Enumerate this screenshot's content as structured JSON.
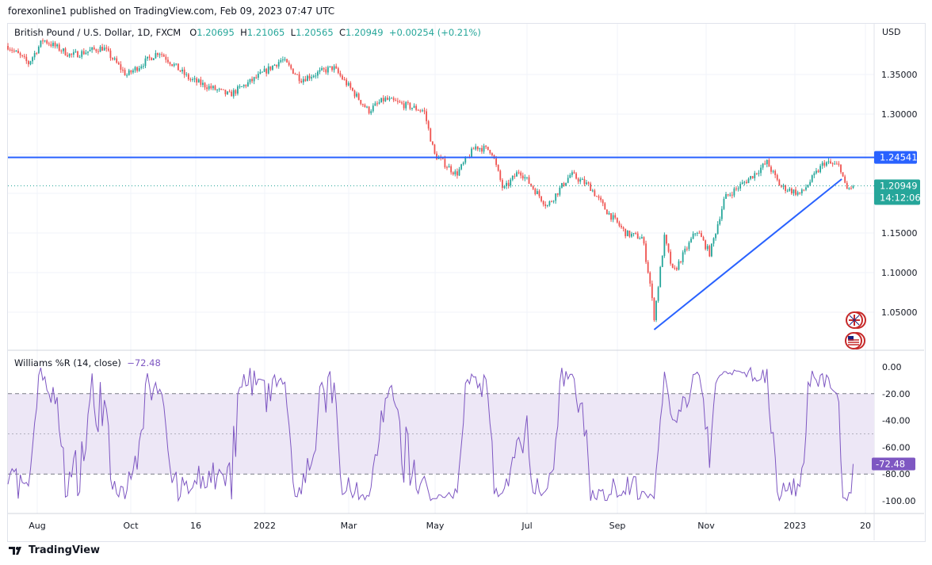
{
  "published": "forexonline1 published on TradingView.com, Feb 09, 2023 07:47 UTC",
  "legend": {
    "symbol": "British Pound / U.S. Dollar, 1D, FXCM",
    "o_label": "O",
    "open": "1.20695",
    "h_label": "H",
    "high": "1.21065",
    "l_label": "L",
    "low": "1.20565",
    "c_label": "C",
    "close": "1.20949",
    "change": "+0.00254 (+0.21%)"
  },
  "currency": "USD",
  "price_labels": {
    "horizontal_line": "1.24541",
    "last_price": "1.20949",
    "countdown": "14:12:06"
  },
  "indicator": {
    "name": "Williams %R (14, close)",
    "value": "−72.48",
    "axis_label": "-72.48"
  },
  "footer": {
    "brand": "TradingView"
  },
  "colors": {
    "up": "#26a69a",
    "down": "#ef5350",
    "line": "#2962ff",
    "williams": "#7e57c2",
    "band": "#ede7f6"
  },
  "icons": [
    "tradingview-logo-icon",
    "gb-flag-icon",
    "us-flag-icon"
  ],
  "chart_data": [
    {
      "type": "candlestick",
      "title": "British Pound / U.S. Dollar, 1D, FXCM",
      "ylabel": "USD",
      "ylim": [
        1.01,
        1.415
      ],
      "y_ticks": [
        "1.35000",
        "1.30000",
        "1.15000",
        "1.10000",
        "1.05000"
      ],
      "x_ticks": [
        "Aug",
        "Oct",
        "16",
        "2022",
        "Mar",
        "May",
        "Jul",
        "Sep",
        "Nov",
        "2023",
        "20"
      ],
      "approx_closes": [
        [
          "2021-07-12",
          1.386
        ],
        [
          "2021-07-26",
          1.364
        ],
        [
          "2021-08-05",
          1.394
        ],
        [
          "2021-08-24",
          1.374
        ],
        [
          "2021-09-15",
          1.384
        ],
        [
          "2021-10-01",
          1.349
        ],
        [
          "2021-10-23",
          1.379
        ],
        [
          "2021-11-13",
          1.344
        ],
        [
          "2021-12-10",
          1.324
        ],
        [
          "2021-12-27",
          1.344
        ],
        [
          "2022-01-15",
          1.369
        ],
        [
          "2022-01-28",
          1.344
        ],
        [
          "2022-02-19",
          1.359
        ],
        [
          "2022-03-02",
          1.334
        ],
        [
          "2022-03-15",
          1.304
        ],
        [
          "2022-03-26",
          1.319
        ],
        [
          "2022-04-22",
          1.304
        ],
        [
          "2022-04-29",
          1.249
        ],
        [
          "2022-05-14",
          1.224
        ],
        [
          "2022-05-27",
          1.259
        ],
        [
          "2022-06-07",
          1.254
        ],
        [
          "2022-06-15",
          1.204
        ],
        [
          "2022-06-26",
          1.229
        ],
        [
          "2022-07-15",
          1.184
        ],
        [
          "2022-07-31",
          1.224
        ],
        [
          "2022-08-13",
          1.209
        ],
        [
          "2022-08-24",
          1.179
        ],
        [
          "2022-09-07",
          1.149
        ],
        [
          "2022-09-18",
          1.144
        ],
        [
          "2022-09-23",
          1.089
        ],
        [
          "2022-09-26",
          1.044
        ],
        [
          "2022-10-03",
          1.144
        ],
        [
          "2022-10-09",
          1.099
        ],
        [
          "2022-10-25",
          1.154
        ],
        [
          "2022-11-03",
          1.124
        ],
        [
          "2022-11-13",
          1.194
        ],
        [
          "2022-11-30",
          1.219
        ],
        [
          "2022-12-12",
          1.239
        ],
        [
          "2022-12-21",
          1.209
        ],
        [
          "2023-01-04",
          1.199
        ],
        [
          "2023-01-20",
          1.239
        ],
        [
          "2023-01-31",
          1.234
        ],
        [
          "2023-02-04",
          1.204
        ],
        [
          "2023-02-09",
          1.20949
        ]
      ],
      "annotations": {
        "horizontal_line": 1.24541,
        "trendline": [
          [
            "2022-09-26",
            1.028
          ],
          [
            "2023-02-01",
            1.218
          ]
        ]
      }
    },
    {
      "type": "line",
      "name": "Williams %R (14, close)",
      "ylim": [
        -100,
        0
      ],
      "y_ticks": [
        "0.00",
        "-20.00",
        "-40.00",
        "-60.00",
        "-80.00",
        "-100.00"
      ],
      "bands": [
        -20,
        -80
      ],
      "midline": -50,
      "last_value": -72.48
    }
  ]
}
